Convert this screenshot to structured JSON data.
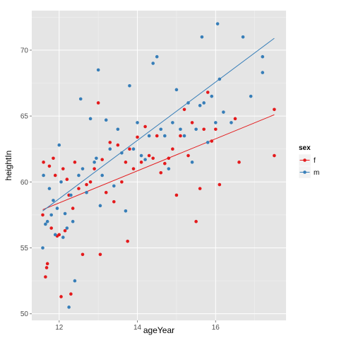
{
  "chart_data": {
    "type": "scatter",
    "xlabel": "ageYear",
    "ylabel": "heightIn",
    "xlim": [
      11.3,
      17.8
    ],
    "ylim": [
      49.5,
      73
    ],
    "x_ticks": [
      12,
      14,
      16
    ],
    "y_ticks": [
      50,
      55,
      60,
      65,
      70
    ],
    "grid": true,
    "legend": {
      "title": "sex",
      "placement": "right",
      "entries": [
        {
          "label": "f",
          "color": "#e41a1c"
        },
        {
          "label": "m",
          "color": "#377eb8"
        }
      ]
    },
    "series": [
      {
        "name": "f",
        "color": "#e41a1c",
        "trend_line": {
          "x": [
            11.58,
            17.5
          ],
          "y": [
            57.9,
            65.1
          ]
        },
        "points": [
          [
            11.58,
            57.5
          ],
          [
            11.6,
            61.5
          ],
          [
            11.65,
            52.8
          ],
          [
            11.68,
            53.5
          ],
          [
            11.7,
            53.8
          ],
          [
            11.75,
            61.2
          ],
          [
            11.8,
            56.5
          ],
          [
            11.85,
            61.8
          ],
          [
            11.9,
            60.5
          ],
          [
            11.95,
            55.9
          ],
          [
            12.0,
            56.0
          ],
          [
            12.05,
            51.3
          ],
          [
            12.1,
            61.0
          ],
          [
            12.15,
            56.3
          ],
          [
            12.2,
            60.2
          ],
          [
            12.25,
            59.0
          ],
          [
            12.3,
            51.5
          ],
          [
            12.35,
            58.0
          ],
          [
            12.4,
            61.5
          ],
          [
            12.5,
            59.5
          ],
          [
            12.6,
            54.5
          ],
          [
            12.7,
            59.8
          ],
          [
            12.8,
            60.0
          ],
          [
            12.9,
            61.0
          ],
          [
            13.0,
            66.0
          ],
          [
            13.05,
            54.5
          ],
          [
            13.1,
            61.7
          ],
          [
            13.2,
            59.2
          ],
          [
            13.3,
            63.0
          ],
          [
            13.4,
            58.5
          ],
          [
            13.5,
            62.8
          ],
          [
            13.6,
            60.0
          ],
          [
            13.7,
            61.5
          ],
          [
            13.75,
            55.5
          ],
          [
            13.8,
            62.5
          ],
          [
            13.9,
            61.0
          ],
          [
            14.0,
            63.4
          ],
          [
            14.1,
            61.5
          ],
          [
            14.2,
            64.2
          ],
          [
            14.3,
            62.0
          ],
          [
            14.4,
            61.8
          ],
          [
            14.5,
            63.5
          ],
          [
            14.6,
            60.7
          ],
          [
            14.7,
            61.4
          ],
          [
            14.8,
            61.8
          ],
          [
            14.9,
            62.5
          ],
          [
            15.0,
            59.0
          ],
          [
            15.1,
            63.5
          ],
          [
            15.2,
            65.5
          ],
          [
            15.3,
            62.0
          ],
          [
            15.4,
            64.5
          ],
          [
            15.5,
            57.0
          ],
          [
            15.6,
            59.5
          ],
          [
            15.7,
            64.0
          ],
          [
            15.8,
            66.8
          ],
          [
            15.9,
            63.1
          ],
          [
            16.0,
            64.0
          ],
          [
            16.1,
            59.8
          ],
          [
            16.5,
            64.8
          ],
          [
            16.6,
            61.5
          ],
          [
            17.5,
            65.5
          ],
          [
            17.5,
            62.0
          ]
        ]
      },
      {
        "name": "m",
        "color": "#377eb8",
        "trend_line": {
          "x": [
            11.58,
            17.5
          ],
          "y": [
            57.8,
            70.9
          ]
        },
        "points": [
          [
            11.58,
            55.0
          ],
          [
            11.6,
            60.5
          ],
          [
            11.65,
            56.8
          ],
          [
            11.7,
            57.0
          ],
          [
            11.75,
            59.5
          ],
          [
            11.8,
            57.5
          ],
          [
            11.85,
            58.6
          ],
          [
            11.9,
            56.0
          ],
          [
            11.95,
            58.0
          ],
          [
            12.0,
            62.8
          ],
          [
            12.05,
            60.0
          ],
          [
            12.1,
            55.8
          ],
          [
            12.15,
            57.6
          ],
          [
            12.2,
            56.5
          ],
          [
            12.25,
            50.5
          ],
          [
            12.3,
            59.0
          ],
          [
            12.35,
            57.0
          ],
          [
            12.4,
            52.5
          ],
          [
            12.5,
            60.5
          ],
          [
            12.55,
            66.3
          ],
          [
            12.6,
            61.0
          ],
          [
            12.7,
            59.2
          ],
          [
            12.8,
            64.8
          ],
          [
            12.9,
            61.5
          ],
          [
            12.95,
            61.8
          ],
          [
            13.0,
            68.5
          ],
          [
            13.05,
            58.2
          ],
          [
            13.1,
            60.5
          ],
          [
            13.2,
            64.7
          ],
          [
            13.3,
            62.5
          ],
          [
            13.4,
            59.7
          ],
          [
            13.5,
            64.0
          ],
          [
            13.6,
            62.2
          ],
          [
            13.7,
            57.8
          ],
          [
            13.8,
            67.3
          ],
          [
            13.9,
            62.5
          ],
          [
            14.0,
            64.5
          ],
          [
            14.1,
            62.0
          ],
          [
            14.2,
            61.7
          ],
          [
            14.3,
            63.5
          ],
          [
            14.4,
            69.0
          ],
          [
            14.5,
            69.5
          ],
          [
            14.6,
            64.0
          ],
          [
            14.7,
            63.5
          ],
          [
            14.8,
            61.0
          ],
          [
            14.9,
            64.5
          ],
          [
            15.0,
            67.0
          ],
          [
            15.1,
            64.0
          ],
          [
            15.2,
            63.5
          ],
          [
            15.3,
            66.0
          ],
          [
            15.4,
            61.5
          ],
          [
            15.5,
            64.0
          ],
          [
            15.6,
            65.8
          ],
          [
            15.65,
            71.0
          ],
          [
            15.7,
            66.0
          ],
          [
            15.8,
            63.0
          ],
          [
            15.9,
            66.5
          ],
          [
            16.0,
            64.5
          ],
          [
            16.05,
            72.0
          ],
          [
            16.1,
            67.8
          ],
          [
            16.2,
            65.3
          ],
          [
            16.4,
            64.5
          ],
          [
            16.7,
            71.0
          ],
          [
            16.9,
            66.5
          ],
          [
            17.2,
            68.3
          ],
          [
            17.2,
            69.5
          ]
        ]
      }
    ]
  }
}
